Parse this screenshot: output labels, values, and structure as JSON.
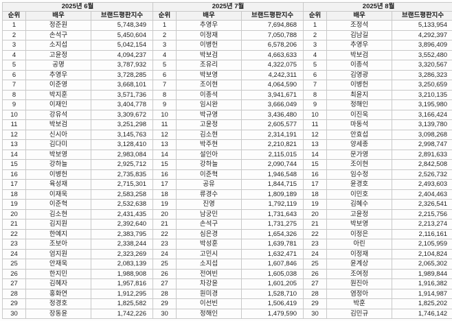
{
  "months": [
    {
      "title": "2025년 6월",
      "columns": {
        "rank": "순위",
        "actor": "배우",
        "index": "브랜드평판지수"
      },
      "rows": [
        {
          "rank": "1",
          "actor": "정준원",
          "value": "5,748,349"
        },
        {
          "rank": "2",
          "actor": "손석구",
          "value": "5,450,604"
        },
        {
          "rank": "3",
          "actor": "소지섭",
          "value": "5,042,154"
        },
        {
          "rank": "4",
          "actor": "고윤정",
          "value": "4,094,237"
        },
        {
          "rank": "5",
          "actor": "공명",
          "value": "3,787,932"
        },
        {
          "rank": "6",
          "actor": "추영우",
          "value": "3,728,285"
        },
        {
          "rank": "7",
          "actor": "이준영",
          "value": "3,668,101"
        },
        {
          "rank": "8",
          "actor": "박지훈",
          "value": "3,571,736"
        },
        {
          "rank": "9",
          "actor": "이재인",
          "value": "3,404,778"
        },
        {
          "rank": "10",
          "actor": "강유석",
          "value": "3,309,672"
        },
        {
          "rank": "11",
          "actor": "박보검",
          "value": "3,251,298"
        },
        {
          "rank": "12",
          "actor": "신시아",
          "value": "3,145,763"
        },
        {
          "rank": "13",
          "actor": "김다미",
          "value": "3,128,410"
        },
        {
          "rank": "14",
          "actor": "박보영",
          "value": "2,983,084"
        },
        {
          "rank": "15",
          "actor": "강하늘",
          "value": "2,925,712"
        },
        {
          "rank": "16",
          "actor": "이병헌",
          "value": "2,735,835"
        },
        {
          "rank": "17",
          "actor": "육성재",
          "value": "2,715,301"
        },
        {
          "rank": "18",
          "actor": "이재욱",
          "value": "2,583,258"
        },
        {
          "rank": "19",
          "actor": "이준혁",
          "value": "2,532,638"
        },
        {
          "rank": "20",
          "actor": "김소현",
          "value": "2,431,435"
        },
        {
          "rank": "21",
          "actor": "김지원",
          "value": "2,392,640"
        },
        {
          "rank": "22",
          "actor": "한예지",
          "value": "2,383,795"
        },
        {
          "rank": "23",
          "actor": "조보아",
          "value": "2,338,244"
        },
        {
          "rank": "24",
          "actor": "엄지원",
          "value": "2,323,269"
        },
        {
          "rank": "25",
          "actor": "안재욱",
          "value": "2,083,139"
        },
        {
          "rank": "26",
          "actor": "한지민",
          "value": "1,988,908"
        },
        {
          "rank": "27",
          "actor": "김혜자",
          "value": "1,957,816"
        },
        {
          "rank": "28",
          "actor": "홍화연",
          "value": "1,912,295"
        },
        {
          "rank": "29",
          "actor": "정경호",
          "value": "1,825,582"
        },
        {
          "rank": "30",
          "actor": "장동윤",
          "value": "1,742,226"
        }
      ]
    },
    {
      "title": "2025년 7월",
      "columns": {
        "rank": "순위",
        "actor": "배우",
        "index": "브랜드평판지수"
      },
      "rows": [
        {
          "rank": "1",
          "actor": "추영우",
          "value": "7,694,868"
        },
        {
          "rank": "2",
          "actor": "이정재",
          "value": "7,050,788"
        },
        {
          "rank": "3",
          "actor": "이병헌",
          "value": "6,578,206"
        },
        {
          "rank": "4",
          "actor": "박보검",
          "value": "4,663,633"
        },
        {
          "rank": "5",
          "actor": "조유리",
          "value": "4,322,075"
        },
        {
          "rank": "6",
          "actor": "박보영",
          "value": "4,242,311"
        },
        {
          "rank": "7",
          "actor": "조이현",
          "value": "4,064,590"
        },
        {
          "rank": "8",
          "actor": "이종석",
          "value": "3,941,671"
        },
        {
          "rank": "9",
          "actor": "임시완",
          "value": "3,666,049"
        },
        {
          "rank": "10",
          "actor": "박규영",
          "value": "3,436,480"
        },
        {
          "rank": "11",
          "actor": "고윤정",
          "value": "2,605,577"
        },
        {
          "rank": "12",
          "actor": "김소현",
          "value": "2,314,191"
        },
        {
          "rank": "13",
          "actor": "박주현",
          "value": "2,210,821"
        },
        {
          "rank": "14",
          "actor": "설인아",
          "value": "2,115,015"
        },
        {
          "rank": "15",
          "actor": "강하늘",
          "value": "2,090,744"
        },
        {
          "rank": "16",
          "actor": "이준혁",
          "value": "1,946,548"
        },
        {
          "rank": "17",
          "actor": "공유",
          "value": "1,844,715"
        },
        {
          "rank": "18",
          "actor": "류경수",
          "value": "1,809,189"
        },
        {
          "rank": "19",
          "actor": "진영",
          "value": "1,792,119"
        },
        {
          "rank": "20",
          "actor": "남궁민",
          "value": "1,731,643"
        },
        {
          "rank": "21",
          "actor": "손석구",
          "value": "1,731,275"
        },
        {
          "rank": "22",
          "actor": "심은경",
          "value": "1,654,326"
        },
        {
          "rank": "23",
          "actor": "박성훈",
          "value": "1,639,781"
        },
        {
          "rank": "24",
          "actor": "고민시",
          "value": "1,632,471"
        },
        {
          "rank": "25",
          "actor": "소지섭",
          "value": "1,607,846"
        },
        {
          "rank": "26",
          "actor": "전여빈",
          "value": "1,605,038"
        },
        {
          "rank": "27",
          "actor": "차강윤",
          "value": "1,601,205"
        },
        {
          "rank": "28",
          "actor": "원미경",
          "value": "1,528,710"
        },
        {
          "rank": "29",
          "actor": "이선빈",
          "value": "1,506,419"
        },
        {
          "rank": "30",
          "actor": "정해인",
          "value": "1,479,590"
        }
      ]
    },
    {
      "title": "2025년 8월",
      "columns": {
        "rank": "순위",
        "actor": "배우",
        "index": "브랜드평판지수"
      },
      "rows": [
        {
          "rank": "1",
          "actor": "조정석",
          "value": "5,133,954"
        },
        {
          "rank": "2",
          "actor": "김남길",
          "value": "4,292,397"
        },
        {
          "rank": "3",
          "actor": "추영우",
          "value": "3,896,409"
        },
        {
          "rank": "4",
          "actor": "박보검",
          "value": "3,552,480"
        },
        {
          "rank": "5",
          "actor": "이종석",
          "value": "3,320,567"
        },
        {
          "rank": "6",
          "actor": "김영광",
          "value": "3,286,323"
        },
        {
          "rank": "7",
          "actor": "이병헌",
          "value": "3,250,659"
        },
        {
          "rank": "8",
          "actor": "최윤지",
          "value": "3,210,135"
        },
        {
          "rank": "9",
          "actor": "정해인",
          "value": "3,195,980"
        },
        {
          "rank": "10",
          "actor": "이진욱",
          "value": "3,166,424"
        },
        {
          "rank": "11",
          "actor": "마동석",
          "value": "3,139,780"
        },
        {
          "rank": "12",
          "actor": "안효섭",
          "value": "3,098,268"
        },
        {
          "rank": "13",
          "actor": "양세종",
          "value": "2,998,747"
        },
        {
          "rank": "14",
          "actor": "문가영",
          "value": "2,891,633"
        },
        {
          "rank": "15",
          "actor": "조이현",
          "value": "2,842,508"
        },
        {
          "rank": "16",
          "actor": "임수정",
          "value": "2,526,732"
        },
        {
          "rank": "17",
          "actor": "윤경호",
          "value": "2,493,603"
        },
        {
          "rank": "18",
          "actor": "이민호",
          "value": "2,404,463"
        },
        {
          "rank": "19",
          "actor": "김혜수",
          "value": "2,326,541"
        },
        {
          "rank": "20",
          "actor": "고윤정",
          "value": "2,215,756"
        },
        {
          "rank": "21",
          "actor": "박보영",
          "value": "2,213,274"
        },
        {
          "rank": "22",
          "actor": "이정은",
          "value": "2,116,161"
        },
        {
          "rank": "23",
          "actor": "아린",
          "value": "2,105,959"
        },
        {
          "rank": "24",
          "actor": "이정재",
          "value": "2,104,824"
        },
        {
          "rank": "25",
          "actor": "윤계상",
          "value": "2,065,302"
        },
        {
          "rank": "26",
          "actor": "조여정",
          "value": "1,989,844"
        },
        {
          "rank": "27",
          "actor": "원진아",
          "value": "1,916,382"
        },
        {
          "rank": "28",
          "actor": "염정아",
          "value": "1,914,987"
        },
        {
          "rank": "29",
          "actor": "박훈",
          "value": "1,825,202"
        },
        {
          "rank": "30",
          "actor": "김민규",
          "value": "1,746,142"
        }
      ]
    }
  ]
}
